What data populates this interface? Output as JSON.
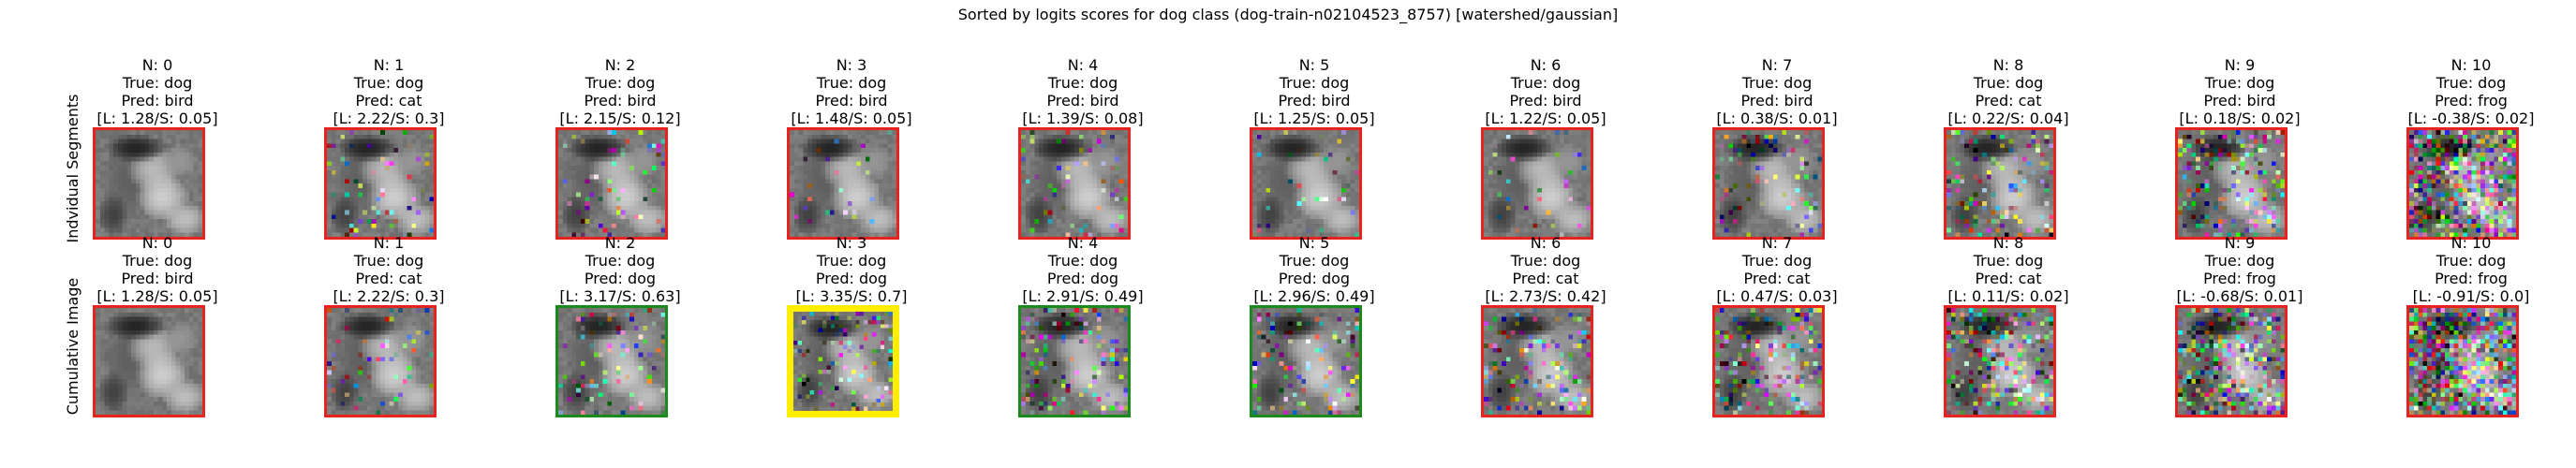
{
  "title": "Sorted by logits scores for dog class (dog-train-n02104523_8757) [watershed/gaussian]",
  "colors": {
    "red": "#e8231f",
    "green": "#1a8a1a",
    "yellow": "#ffee00"
  },
  "rows": [
    {
      "label": "Indvidual Segments",
      "cells": [
        {
          "n": "N: 0",
          "true": "True: dog",
          "pred": "Pred: bird",
          "score": "[L: 1.28/S: 0.05]",
          "border": "red",
          "noise": 0.0
        },
        {
          "n": "N: 1",
          "true": "True: dog",
          "pred": "Pred: cat",
          "score": "[L: 2.22/S: 0.3]",
          "border": "red",
          "noise": 0.1
        },
        {
          "n": "N: 2",
          "true": "True: dog",
          "pred": "Pred: bird",
          "score": "[L: 2.15/S: 0.12]",
          "border": "red",
          "noise": 0.1
        },
        {
          "n": "N: 3",
          "true": "True: dog",
          "pred": "Pred: bird",
          "score": "[L: 1.48/S: 0.05]",
          "border": "red",
          "noise": 0.05
        },
        {
          "n": "N: 4",
          "true": "True: dog",
          "pred": "Pred: bird",
          "score": "[L: 1.39/S: 0.08]",
          "border": "red",
          "noise": 0.1
        },
        {
          "n": "N: 5",
          "true": "True: dog",
          "pred": "Pred: bird",
          "score": "[L: 1.25/S: 0.05]",
          "border": "red",
          "noise": 0.05
        },
        {
          "n": "N: 6",
          "true": "True: dog",
          "pred": "Pred: bird",
          "score": "[L: 1.22/S: 0.05]",
          "border": "red",
          "noise": 0.05
        },
        {
          "n": "N: 7",
          "true": "True: dog",
          "pred": "Pred: bird",
          "score": "[L: 0.38/S: 0.01]",
          "border": "red",
          "noise": 0.15
        },
        {
          "n": "N: 8",
          "true": "True: dog",
          "pred": "Pred: cat",
          "score": "[L: 0.22/S: 0.04]",
          "border": "red",
          "noise": 0.2
        },
        {
          "n": "N: 9",
          "true": "True: dog",
          "pred": "Pred: bird",
          "score": "[L: 0.18/S: 0.02]",
          "border": "red",
          "noise": 0.3
        },
        {
          "n": "N: 10",
          "true": "True: dog",
          "pred": "Pred: frog",
          "score": "[L: -0.38/S: 0.02]",
          "border": "red",
          "noise": 0.7
        }
      ]
    },
    {
      "label": "Cumulative Image",
      "cells": [
        {
          "n": "N: 0",
          "true": "True: dog",
          "pred": "Pred: bird",
          "score": "[L: 1.28/S: 0.05]",
          "border": "red",
          "noise": 0.0
        },
        {
          "n": "N: 1",
          "true": "True: dog",
          "pred": "Pred: cat",
          "score": "[L: 2.22/S: 0.3]",
          "border": "red",
          "noise": 0.1
        },
        {
          "n": "N: 2",
          "true": "True: dog",
          "pred": "Pred: dog",
          "score": "[L: 3.17/S: 0.63]",
          "border": "green",
          "noise": 0.15
        },
        {
          "n": "N: 3",
          "true": "True: dog",
          "pred": "Pred: dog",
          "score": "[L: 3.35/S: 0.7]",
          "border": "yellow",
          "noise": 0.18
        },
        {
          "n": "N: 4",
          "true": "True: dog",
          "pred": "Pred: dog",
          "score": "[L: 2.91/S: 0.49]",
          "border": "green",
          "noise": 0.2
        },
        {
          "n": "N: 5",
          "true": "True: dog",
          "pred": "Pred: dog",
          "score": "[L: 2.96/S: 0.49]",
          "border": "green",
          "noise": 0.22
        },
        {
          "n": "N: 6",
          "true": "True: dog",
          "pred": "Pred: cat",
          "score": "[L: 2.73/S: 0.42]",
          "border": "red",
          "noise": 0.25
        },
        {
          "n": "N: 7",
          "true": "True: dog",
          "pred": "Pred: cat",
          "score": "[L: 0.47/S: 0.03]",
          "border": "red",
          "noise": 0.3
        },
        {
          "n": "N: 8",
          "true": "True: dog",
          "pred": "Pred: cat",
          "score": "[L: 0.11/S: 0.02]",
          "border": "red",
          "noise": 0.38
        },
        {
          "n": "N: 9",
          "true": "True: dog",
          "pred": "Pred: frog",
          "score": "[L: -0.68/S: 0.01]",
          "border": "red",
          "noise": 0.5
        },
        {
          "n": "N: 10",
          "true": "True: dog",
          "pred": "Pred: frog",
          "score": "[L: -0.91/S: 0.0]",
          "border": "red",
          "noise": 0.8
        }
      ]
    }
  ]
}
